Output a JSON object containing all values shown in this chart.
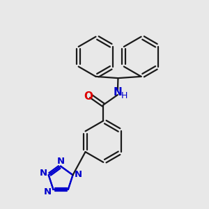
{
  "background_color": "#e8e8e8",
  "bond_color": "#1a1a1a",
  "bond_lw": 1.6,
  "O_color": "#dd0000",
  "N_color": "#0000cc",
  "NH_color": "#0000cc",
  "figsize": [
    3.0,
    3.0
  ],
  "dpi": 100,
  "xlim": [
    -1.85,
    2.15
  ],
  "ylim": [
    -2.85,
    2.35
  ]
}
